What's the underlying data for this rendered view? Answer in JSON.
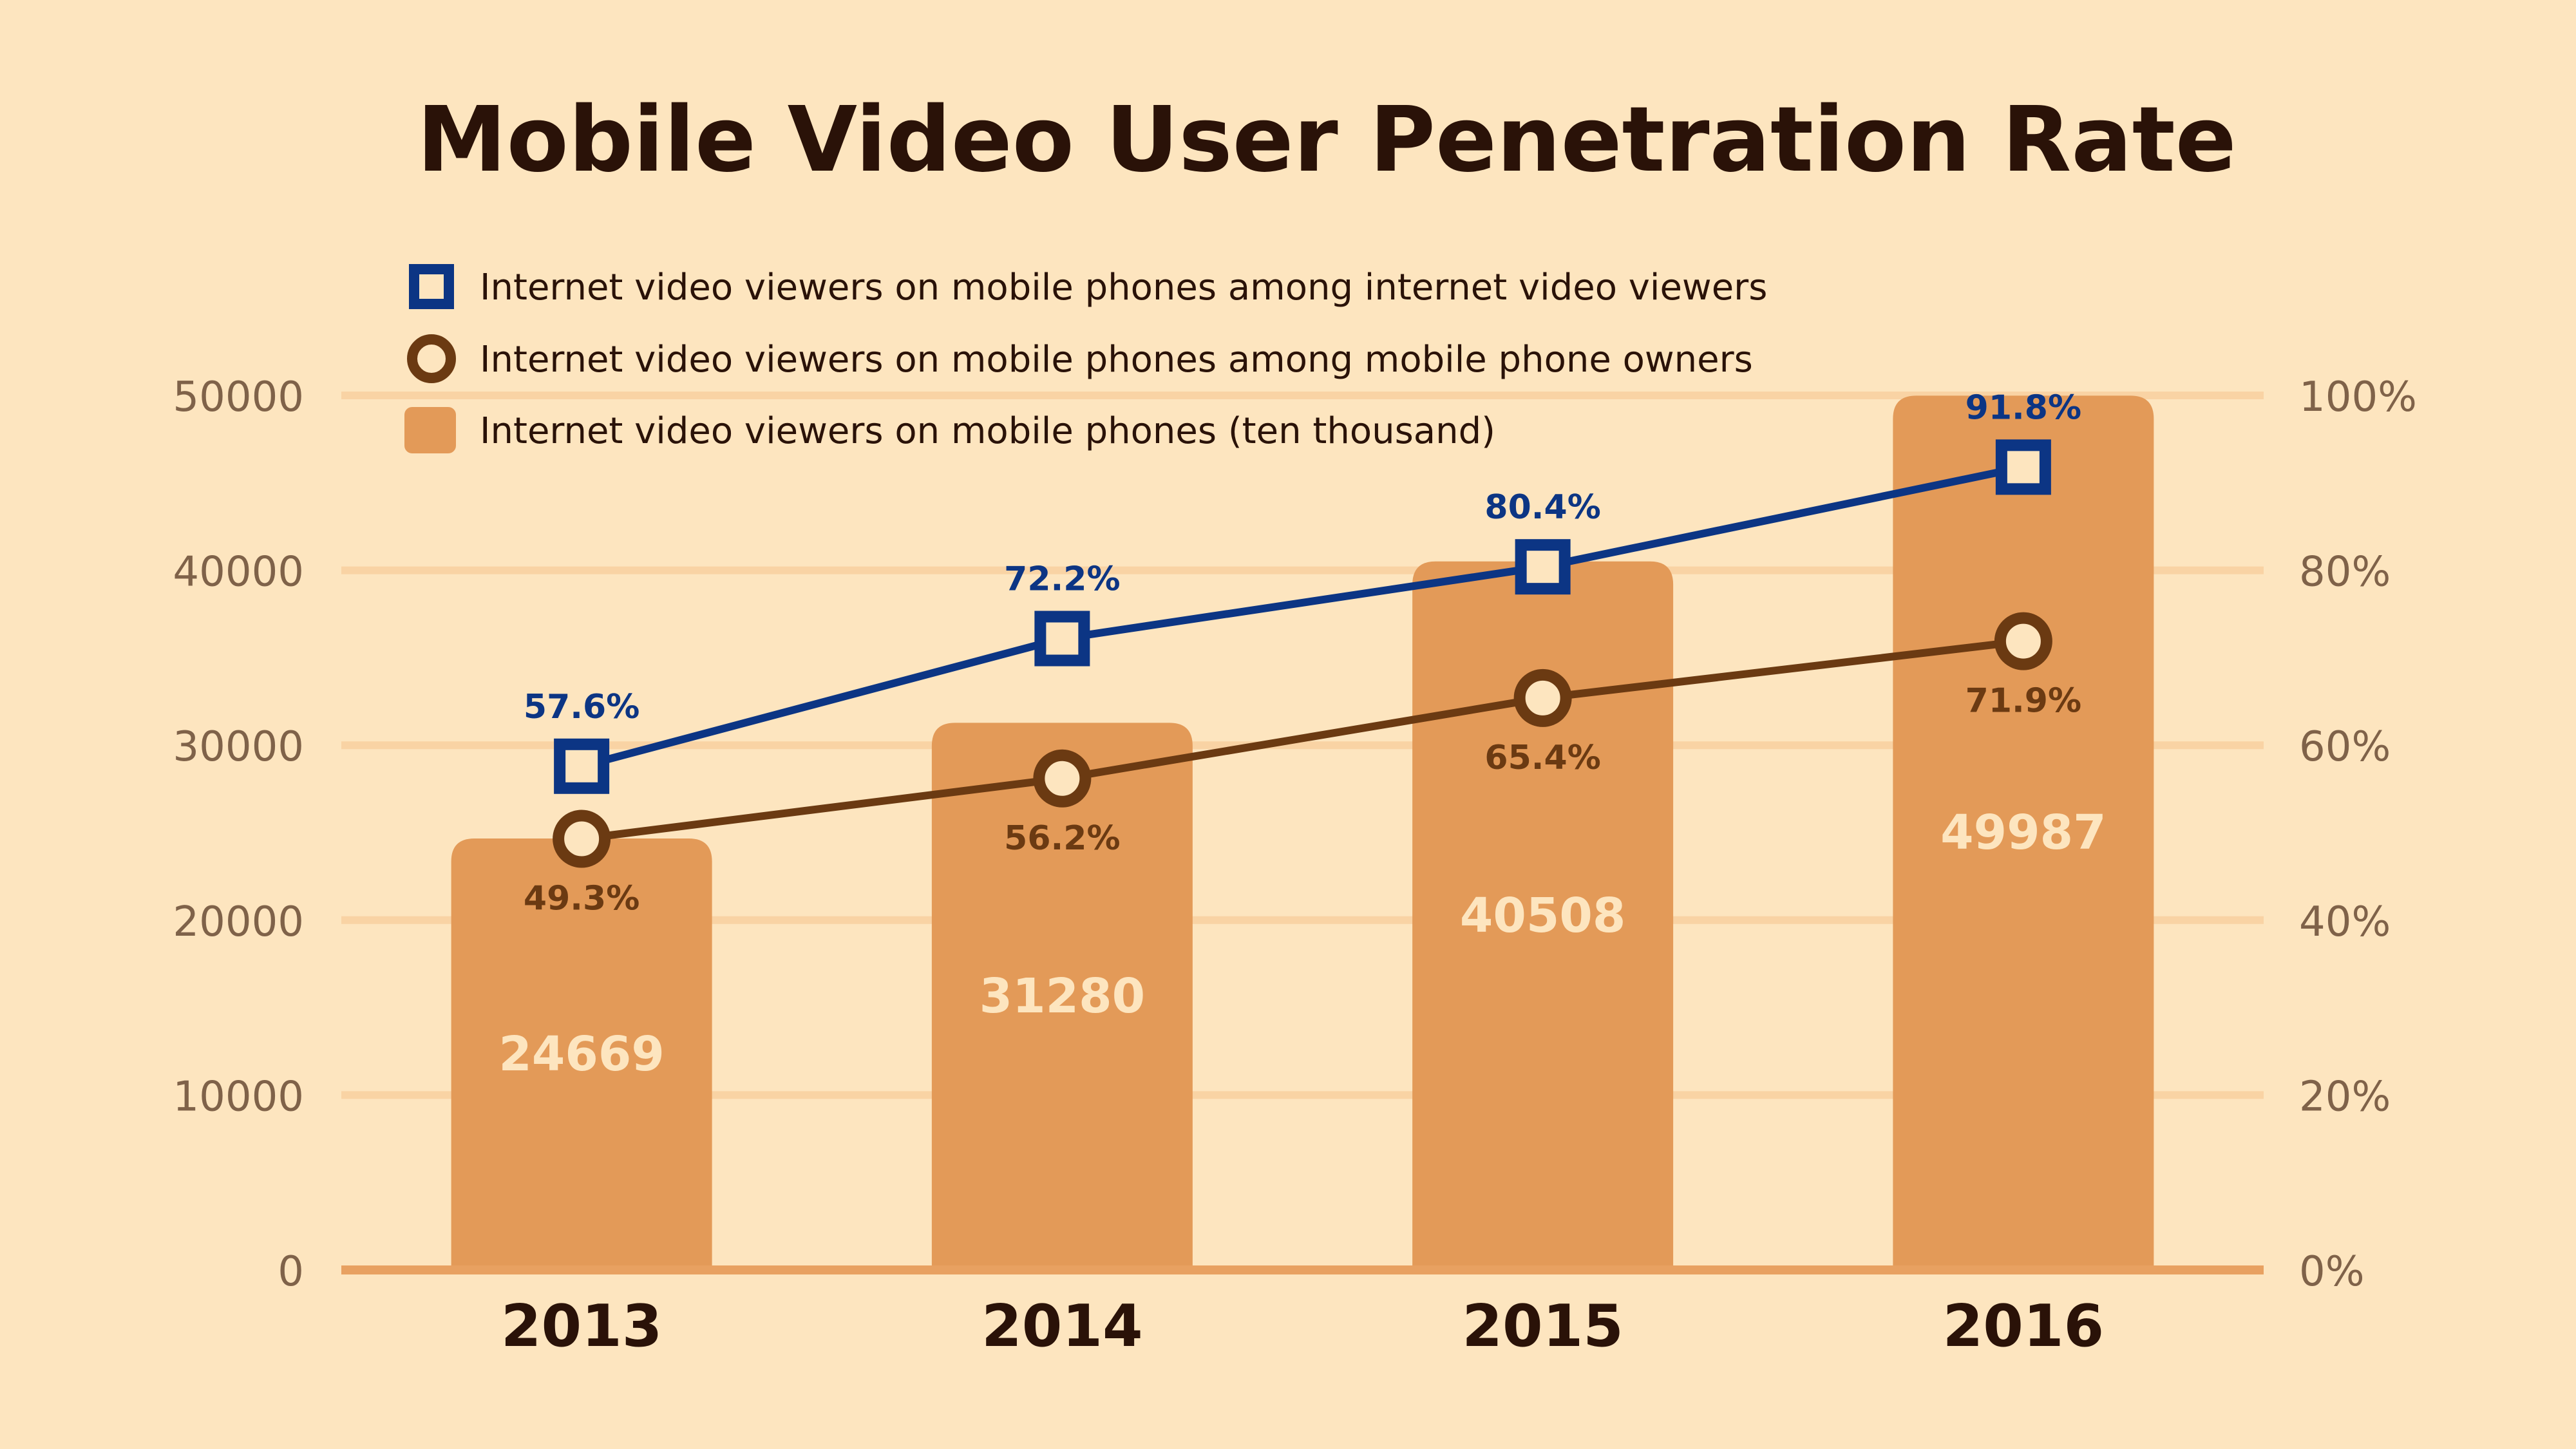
{
  "colors": {
    "background": "#fde5bf",
    "bar": "#e39a58",
    "bar_label": "#fde5bf",
    "blue_line": "#0c3584",
    "brown_line": "#6b3a12",
    "marker_fill": "#fde5bf",
    "gridline": "#f9d3a4",
    "baseline": "#e8a161",
    "axis_tick": "#7f6249",
    "title": "#2a1208",
    "xtick": "#2a1208"
  },
  "chart_data": {
    "type": "bar",
    "title": "Mobile Video User Penetration Rate",
    "categories": [
      "2013",
      "2014",
      "2015",
      "2016"
    ],
    "xlabel": "",
    "ylabel": "",
    "y_left": {
      "lim": [
        0,
        50000
      ],
      "ticks": [
        "0",
        "10000",
        "20000",
        "30000",
        "40000",
        "50000"
      ]
    },
    "y_right": {
      "lim": [
        0,
        100
      ],
      "ticks": [
        "0%",
        "20%",
        "40%",
        "60%",
        "80%",
        "100%"
      ]
    },
    "grid": true,
    "legend_position": "top-left",
    "series": [
      {
        "name": "Internet video viewers on mobile phones among internet video viewers",
        "type": "line",
        "axis": "right",
        "marker": "square",
        "color": "#0c3584",
        "values": [
          57.6,
          72.2,
          80.4,
          91.8
        ],
        "labels": [
          "57.6%",
          "72.2%",
          "80.4%",
          "91.8%"
        ]
      },
      {
        "name": "Internet video viewers on mobile phones among mobile phone owners",
        "type": "line",
        "axis": "right",
        "marker": "circle",
        "color": "#6b3a12",
        "values": [
          49.3,
          56.2,
          65.4,
          71.9
        ],
        "labels": [
          "49.3%",
          "56.2%",
          "65.4%",
          "71.9%"
        ]
      },
      {
        "name": "Internet video viewers on mobile phones (ten thousand)",
        "type": "bar",
        "axis": "left",
        "color": "#e39a58",
        "values": [
          24669,
          31280,
          40508,
          49987
        ],
        "labels": [
          "24669",
          "31280",
          "40508",
          "49987"
        ]
      }
    ]
  }
}
